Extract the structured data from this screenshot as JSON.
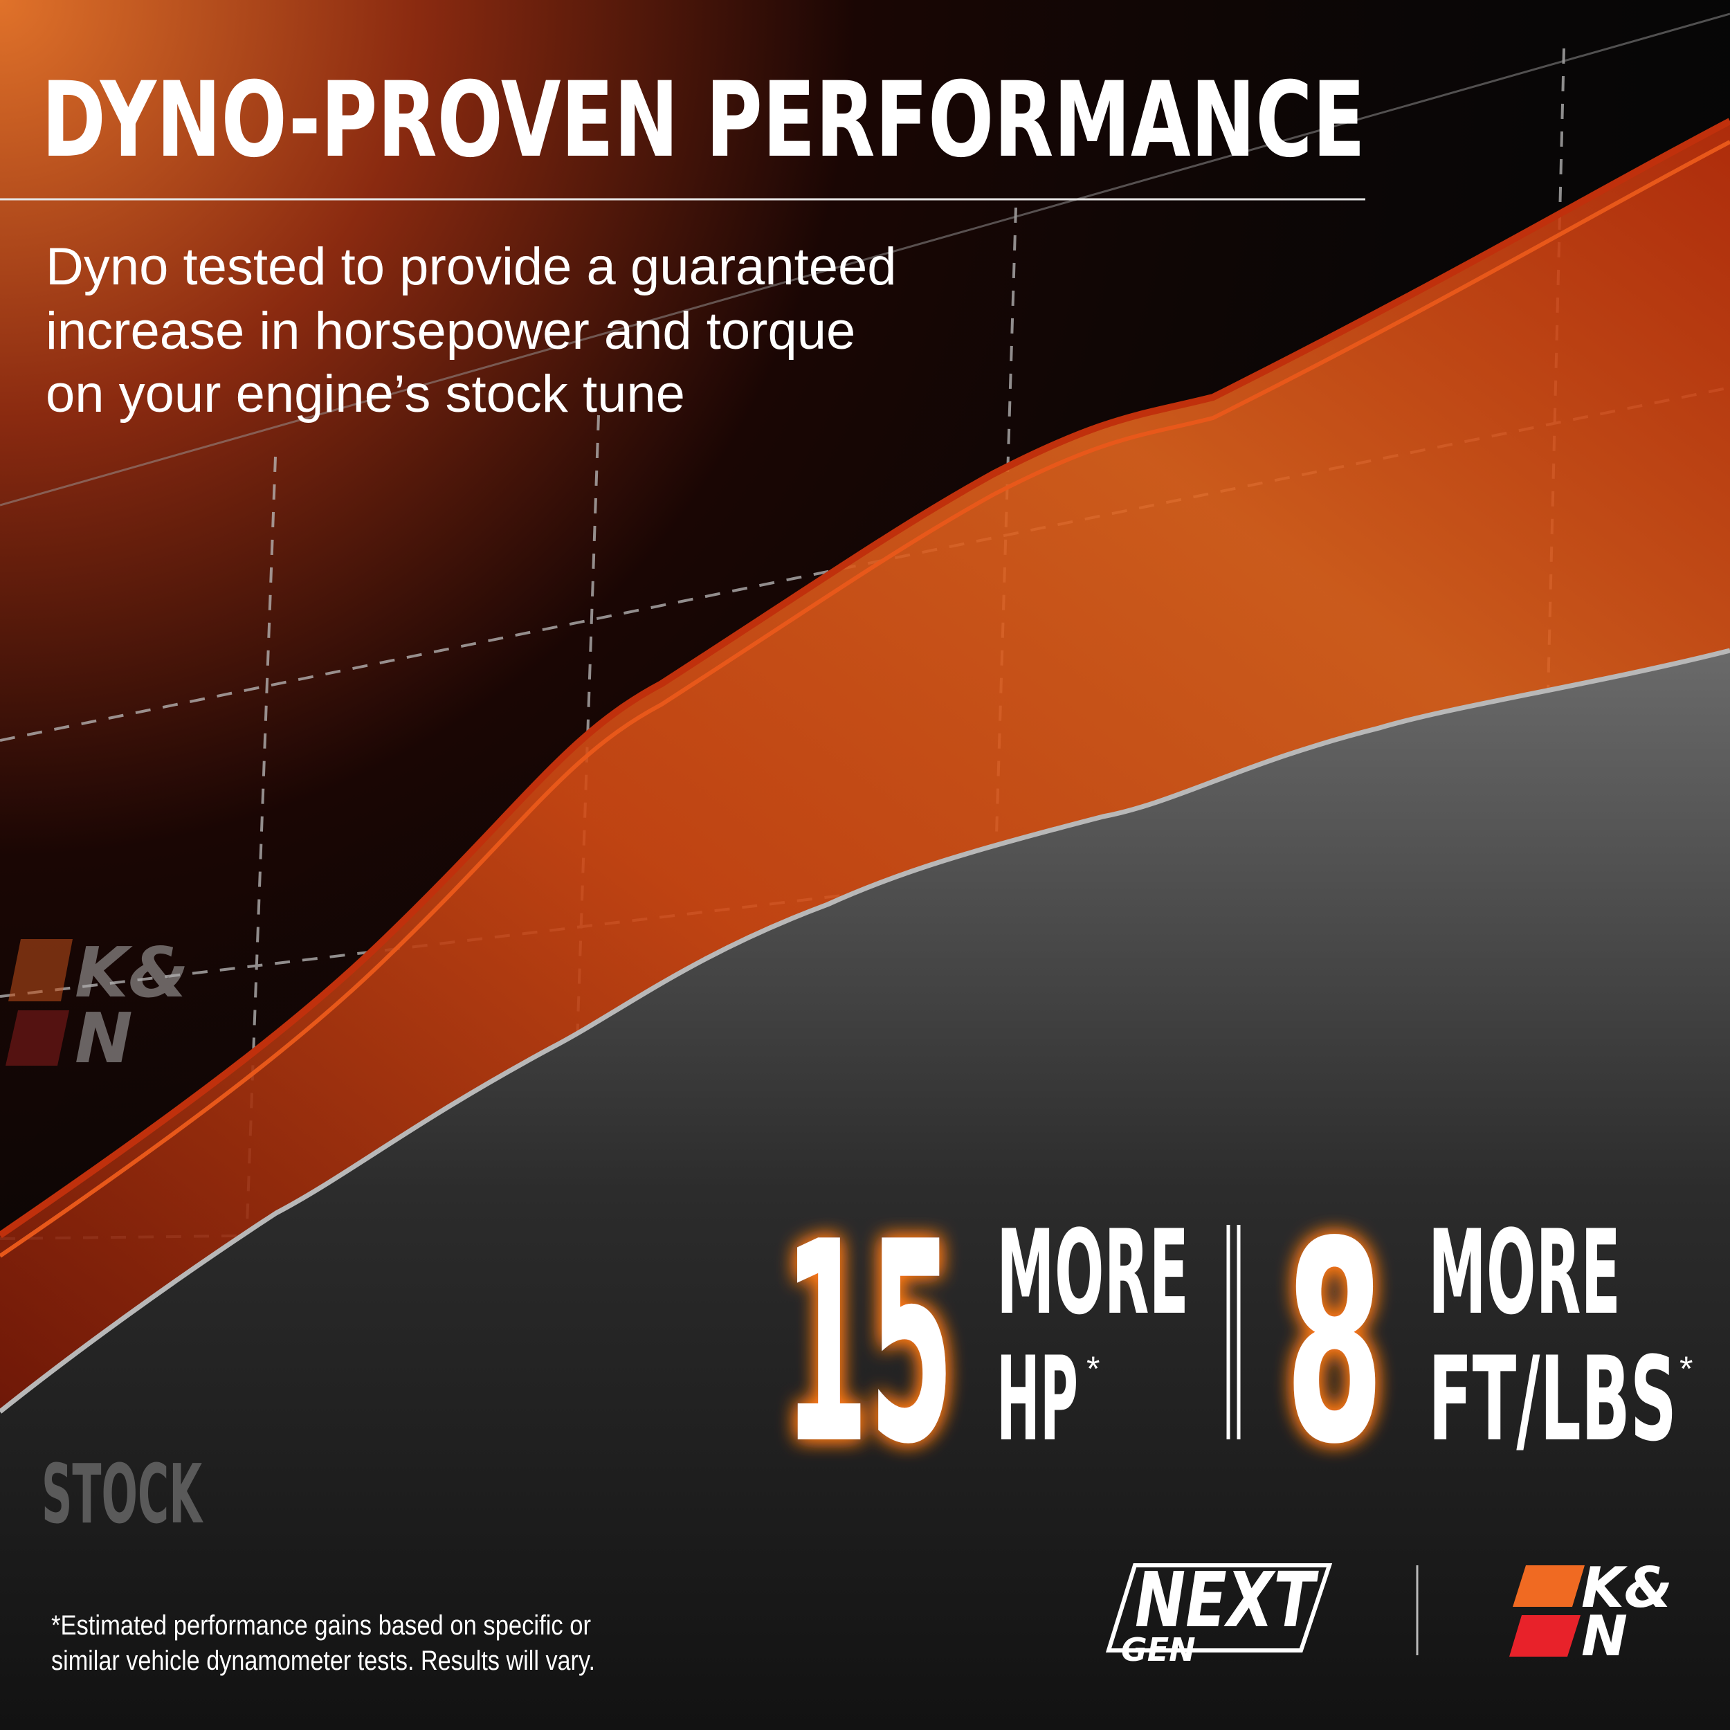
{
  "header": {
    "title": "DYNO-PROVEN PERFORMANCE",
    "description": [
      "Dyno tested to provide a guaranteed",
      "increase in horsepower and torque",
      "on your engine’s stock tune"
    ]
  },
  "graphic": {
    "brand_mark": [
      "K&",
      "N"
    ],
    "stock_label": "STOCK"
  },
  "stats": [
    {
      "number": 15,
      "label": [
        "MORE",
        "HP"
      ],
      "marker": "*"
    },
    {
      "number": 8,
      "label": [
        "MORE",
        "FT/LBS"
      ],
      "marker": "*"
    }
  ],
  "footnote": [
    "*Estimated performance gains based on specific or",
    "similar vehicle dynamometer tests. Results will vary."
  ],
  "logos": {
    "next_gen": [
      "NEXT",
      "GEN"
    ],
    "kn": [
      "K&",
      "N"
    ]
  }
}
